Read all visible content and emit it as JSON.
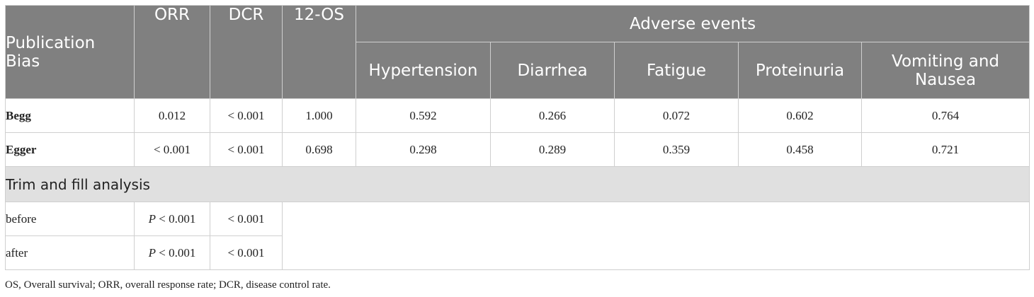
{
  "header": {
    "publication_bias": "Publication Bias",
    "orr": "ORR",
    "dcr": "DCR",
    "os12": "12-OS",
    "adverse_events": "Adverse events",
    "ae": [
      "Hypertension",
      "Diarrhea",
      "Fatigue",
      "Proteinuria",
      "Vomiting and Nausea"
    ]
  },
  "rows": [
    {
      "label": "Begg",
      "values": [
        "0.012",
        "< 0.001",
        "1.000",
        "0.592",
        "0.266",
        "0.072",
        "0.602",
        "0.764"
      ]
    },
    {
      "label": "Egger",
      "values": [
        "< 0.001",
        "< 0.001",
        "0.698",
        "0.298",
        "0.289",
        "0.359",
        "0.458",
        "0.721"
      ]
    }
  ],
  "trim_fill": {
    "title": "Trim and fill analysis",
    "rows": [
      {
        "label": "before",
        "p_symbol": "P",
        "orr": " < 0.001",
        "dcr": "< 0.001"
      },
      {
        "label": "after",
        "p_symbol": "P",
        "orr": " < 0.001",
        "dcr": "< 0.001"
      }
    ]
  },
  "footnote": "OS, Overall survival; ORR, overall response rate; DCR, disease control rate."
}
